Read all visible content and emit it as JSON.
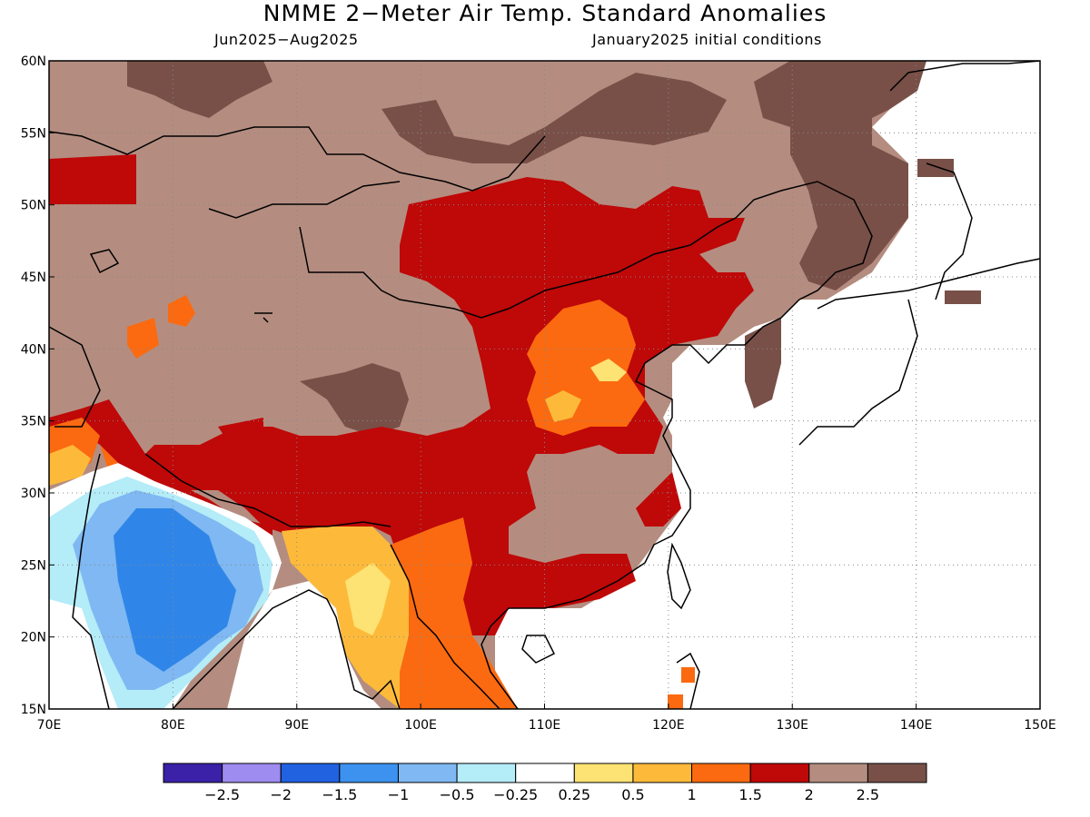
{
  "title": "NMME 2−Meter Air Temp. Standard Anomalies",
  "subtitle_left": "Jun2025−Aug2025",
  "subtitle_right": "January2025 initial conditions",
  "map": {
    "lon_range": [
      70,
      150
    ],
    "lat_range": [
      15,
      60
    ],
    "lon_ticks": [
      {
        "value": 70,
        "label": "70E"
      },
      {
        "value": 80,
        "label": "80E"
      },
      {
        "value": 90,
        "label": "90E"
      },
      {
        "value": 100,
        "label": "100E"
      },
      {
        "value": 110,
        "label": "110E"
      },
      {
        "value": 120,
        "label": "120E"
      },
      {
        "value": 130,
        "label": "130E"
      },
      {
        "value": 140,
        "label": "140E"
      },
      {
        "value": 150,
        "label": "150E"
      }
    ],
    "lat_ticks": [
      {
        "value": 15,
        "label": "15N"
      },
      {
        "value": 20,
        "label": "20N"
      },
      {
        "value": 25,
        "label": "25N"
      },
      {
        "value": 30,
        "label": "30N"
      },
      {
        "value": 35,
        "label": "35N"
      },
      {
        "value": 40,
        "label": "40N"
      },
      {
        "value": 45,
        "label": "45N"
      },
      {
        "value": 50,
        "label": "50N"
      },
      {
        "value": 55,
        "label": "55N"
      },
      {
        "value": 60,
        "label": "60N"
      }
    ],
    "colors": {
      "c_-2.5": "#3b20a8",
      "c_-2": "#9f8cf0",
      "c_-1.5": "#2062e0",
      "c_-1": "#3c92ee",
      "c_-0.5": "#7fb8f2",
      "c_-0.25": "#b4ecf8",
      "c_0": "#ffffff",
      "c_0.25": "#fde274",
      "c_0.5": "#fdba3a",
      "c_1": "#fb6a10",
      "c_1.5": "#bf0808",
      "c_2": "#b48d80",
      "c_2.5": "#785048"
    }
  },
  "colorbar": {
    "colors": [
      "#3b20a8",
      "#9f8cf0",
      "#2062e0",
      "#3c92ee",
      "#7fb8f2",
      "#b4ecf8",
      "#ffffff",
      "#fde274",
      "#fdba3a",
      "#fb6a10",
      "#bf0808",
      "#b48d80",
      "#785048"
    ],
    "labels": [
      "−2.5",
      "−2",
      "−1.5",
      "−1",
      "−0.5",
      "−0.25",
      "0.25",
      "0.5",
      "1",
      "1.5",
      "2",
      "2.5"
    ]
  }
}
